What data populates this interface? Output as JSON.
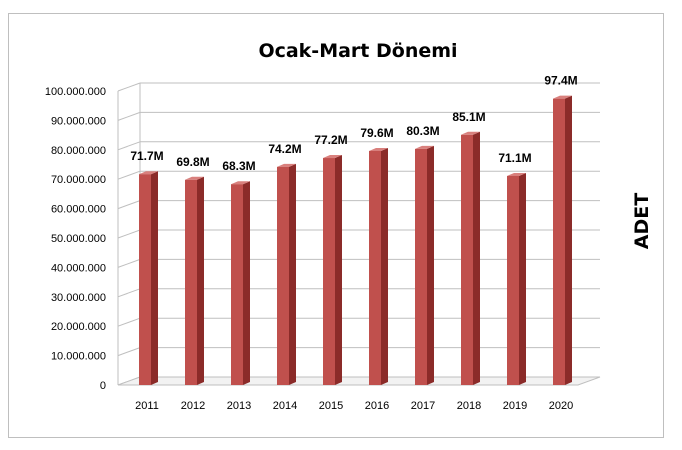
{
  "chart_data": {
    "type": "bar",
    "title": "Ocak-Mart Dönemi",
    "ylabel": "ADET",
    "xlabel": "",
    "categories": [
      "2011",
      "2012",
      "2013",
      "2014",
      "2015",
      "2016",
      "2017",
      "2018",
      "2019",
      "2020"
    ],
    "values": [
      71700000,
      69800000,
      68300000,
      74200000,
      77200000,
      79600000,
      80300000,
      85100000,
      71100000,
      97400000
    ],
    "data_labels": [
      "71.7M",
      "69.8M",
      "68.3M",
      "74.2M",
      "77.2M",
      "79.6M",
      "80.3M",
      "85.1M",
      "71.1M",
      "97.4M"
    ],
    "y_ticks": [
      "0",
      "10.000.000",
      "20.000.000",
      "30.000.000",
      "40.000.000",
      "50.000.000",
      "60.000.000",
      "70.000.000",
      "80.000.000",
      "90.000.000",
      "100.000.000"
    ],
    "ylim": [
      0,
      100000000
    ],
    "grid": true,
    "legend": "none",
    "bar_color": "#c0504d",
    "bar_side_color": "#8b2b29",
    "bar_top_color": "#d9807d"
  }
}
